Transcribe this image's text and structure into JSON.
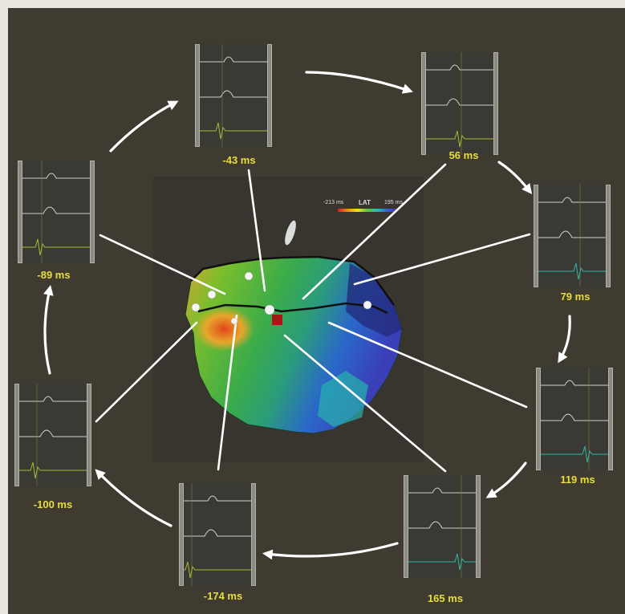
{
  "lat_scale": {
    "min": "-213 ms",
    "title": "LAT",
    "max": "195 ms",
    "colors": [
      "#d81e1e",
      "#f08a1a",
      "#f0e01c",
      "#5ec23a",
      "#1ec0b8",
      "#2f62d6",
      "#5a2fa8"
    ]
  },
  "colors": {
    "label": "#e8dd3a",
    "background": "#3f3b30",
    "map_panel": "#37352d"
  },
  "activation_points": [
    {
      "time": "-43 ms",
      "trace_color": "#a8b834"
    },
    {
      "time": "56 ms",
      "trace_color": "#a8b834"
    },
    {
      "time": "79 ms",
      "trace_color": "#2fb6a6"
    },
    {
      "time": "119 ms",
      "trace_color": "#2fb6a6"
    },
    {
      "time": "165 ms",
      "trace_color": "#2fb6a6"
    },
    {
      "time": "-174 ms",
      "trace_color": "#a8b834"
    },
    {
      "time": "-100 ms",
      "trace_color": "#a8b834"
    },
    {
      "time": "-89 ms",
      "trace_color": "#a8b834"
    }
  ]
}
